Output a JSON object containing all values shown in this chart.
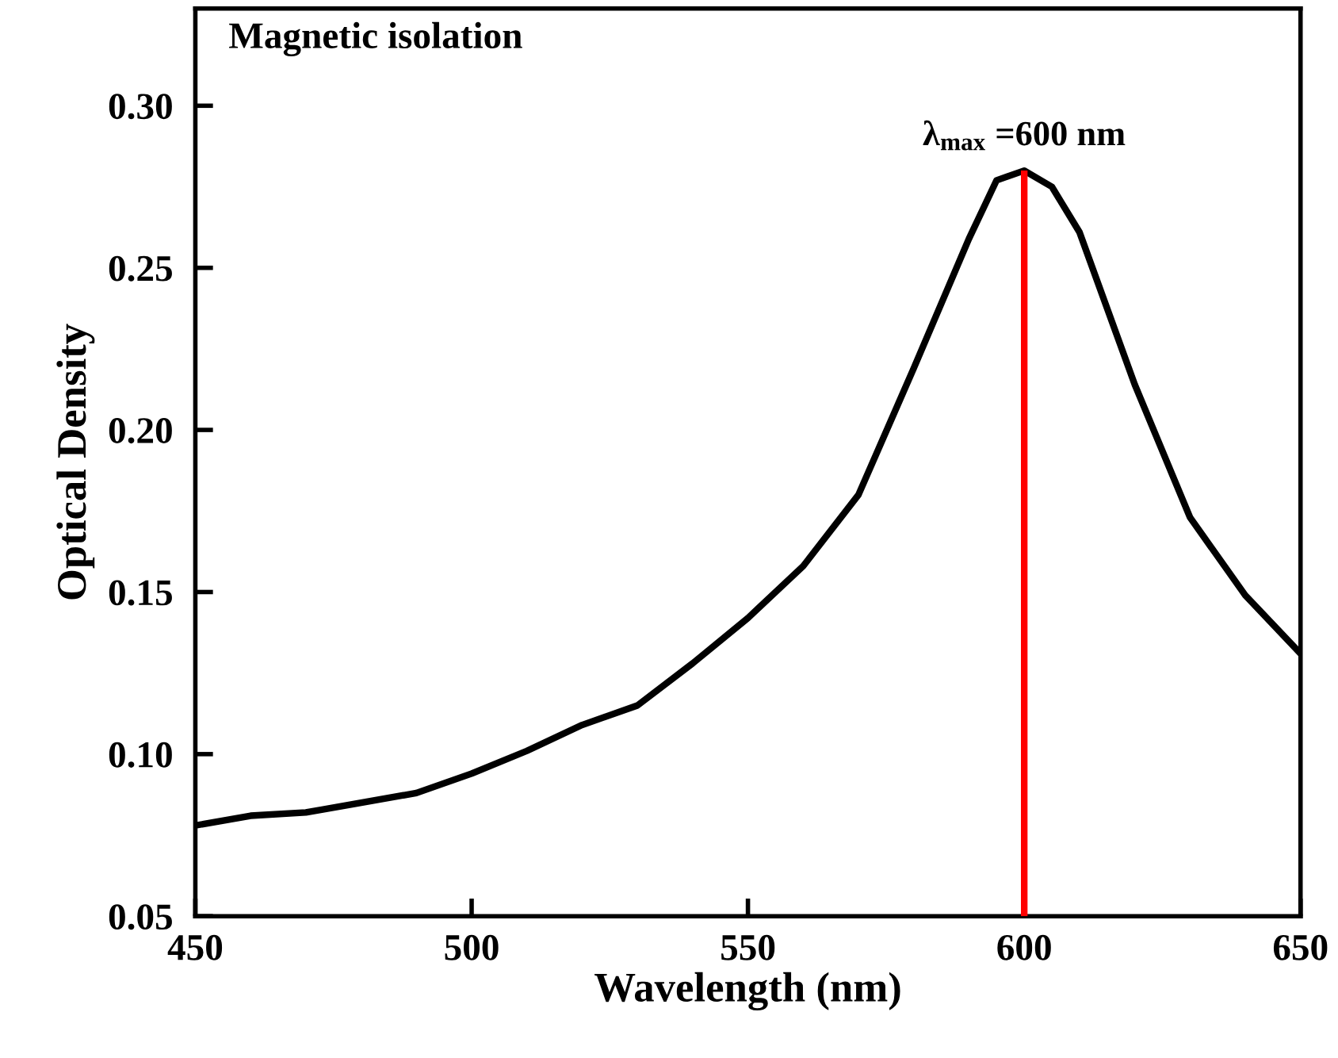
{
  "chart_data": {
    "type": "line",
    "title": "Magnetic isolation",
    "xlabel": "Wavelength (nm)",
    "ylabel": "Optical Density",
    "x": [
      450,
      460,
      470,
      490,
      500,
      510,
      520,
      530,
      540,
      550,
      560,
      570,
      580,
      590,
      595,
      600,
      605,
      610,
      620,
      630,
      640,
      650
    ],
    "series": [
      {
        "color": "#000000",
        "values": [
          0.078,
          0.081,
          0.082,
          0.088,
          0.094,
          0.101,
          0.109,
          0.115,
          0.128,
          0.142,
          0.158,
          0.18,
          0.219,
          0.259,
          0.277,
          0.28,
          0.275,
          0.261,
          0.214,
          0.173,
          0.149,
          0.131
        ]
      }
    ],
    "ref_lines": [
      {
        "axis": "x",
        "value": 600,
        "label": "λ$_{max}$ =600 nm",
        "color": "#ff0000",
        "line_style": "solid"
      }
    ],
    "xlim": [
      450,
      650
    ],
    "xticks": [
      450,
      500,
      550,
      600,
      650
    ],
    "ylim": [
      0.05,
      0.33
    ],
    "yticks": [
      {
        "value": 0.05,
        "label": "0.05"
      },
      {
        "value": 0.1,
        "label": "0.10"
      },
      {
        "value": 0.15,
        "label": "0.15"
      },
      {
        "value": 0.2,
        "label": "0.20"
      },
      {
        "value": 0.25,
        "label": "0.25"
      },
      {
        "value": 0.3,
        "label": "0.30"
      }
    ],
    "grid": false,
    "marker": "none",
    "line_style": "solid"
  }
}
